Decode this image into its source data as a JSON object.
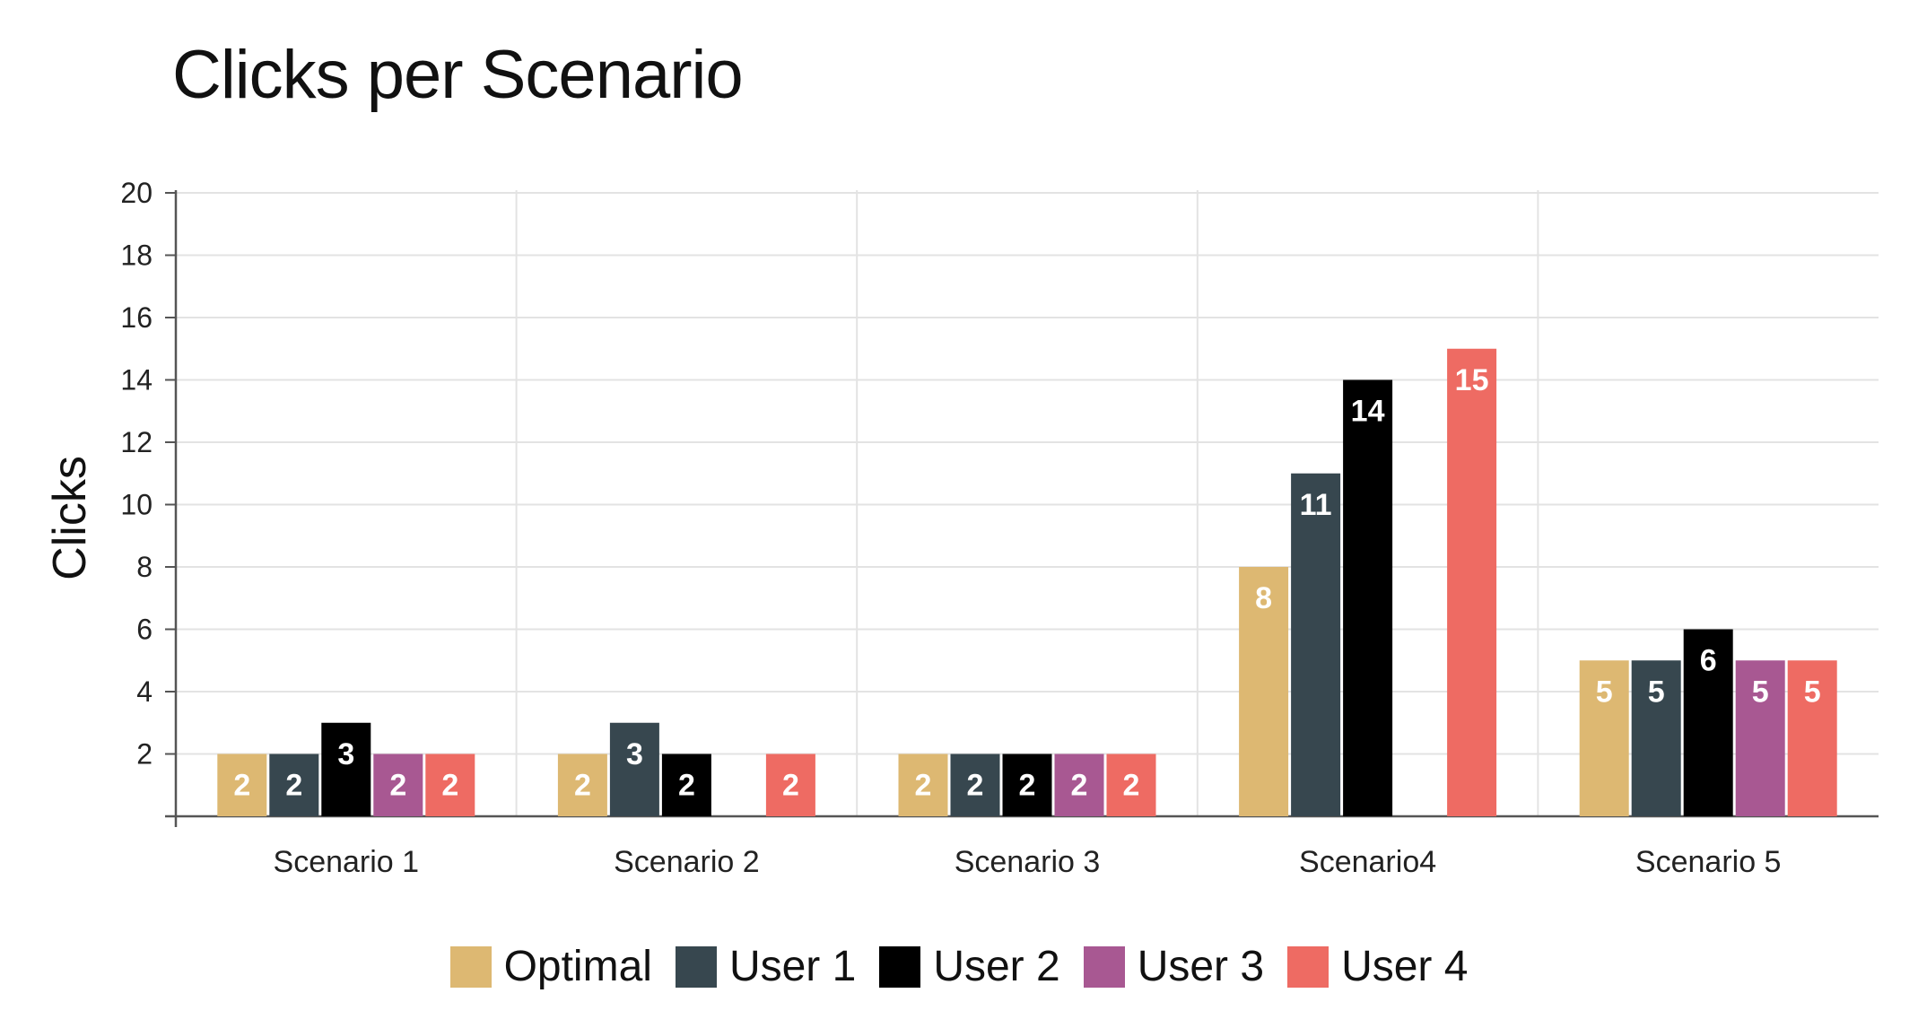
{
  "chart_data": {
    "type": "bar",
    "title": "Clicks per Scenario",
    "xlabel": "",
    "ylabel": "Clicks",
    "ylim": [
      0,
      20
    ],
    "yticks": [
      2,
      4,
      6,
      8,
      10,
      12,
      14,
      16,
      18,
      20
    ],
    "grid": true,
    "legend_position": "bottom",
    "categories": [
      "Scenario 1",
      "Scenario 2",
      "Scenario 3",
      "Scenario4",
      "Scenario 5"
    ],
    "series": [
      {
        "name": "Optimal",
        "color": "#DDB872",
        "values": [
          2,
          2,
          2,
          8,
          5
        ]
      },
      {
        "name": "User 1",
        "color": "#37474F",
        "values": [
          2,
          3,
          2,
          11,
          5
        ]
      },
      {
        "name": "User 2",
        "color": "#000000",
        "values": [
          3,
          2,
          2,
          14,
          6
        ]
      },
      {
        "name": "User 3",
        "color": "#A85892",
        "values": [
          2,
          null,
          2,
          null,
          5
        ]
      },
      {
        "name": "User 4",
        "color": "#EE6B63",
        "values": [
          2,
          2,
          2,
          15,
          5
        ]
      }
    ]
  }
}
